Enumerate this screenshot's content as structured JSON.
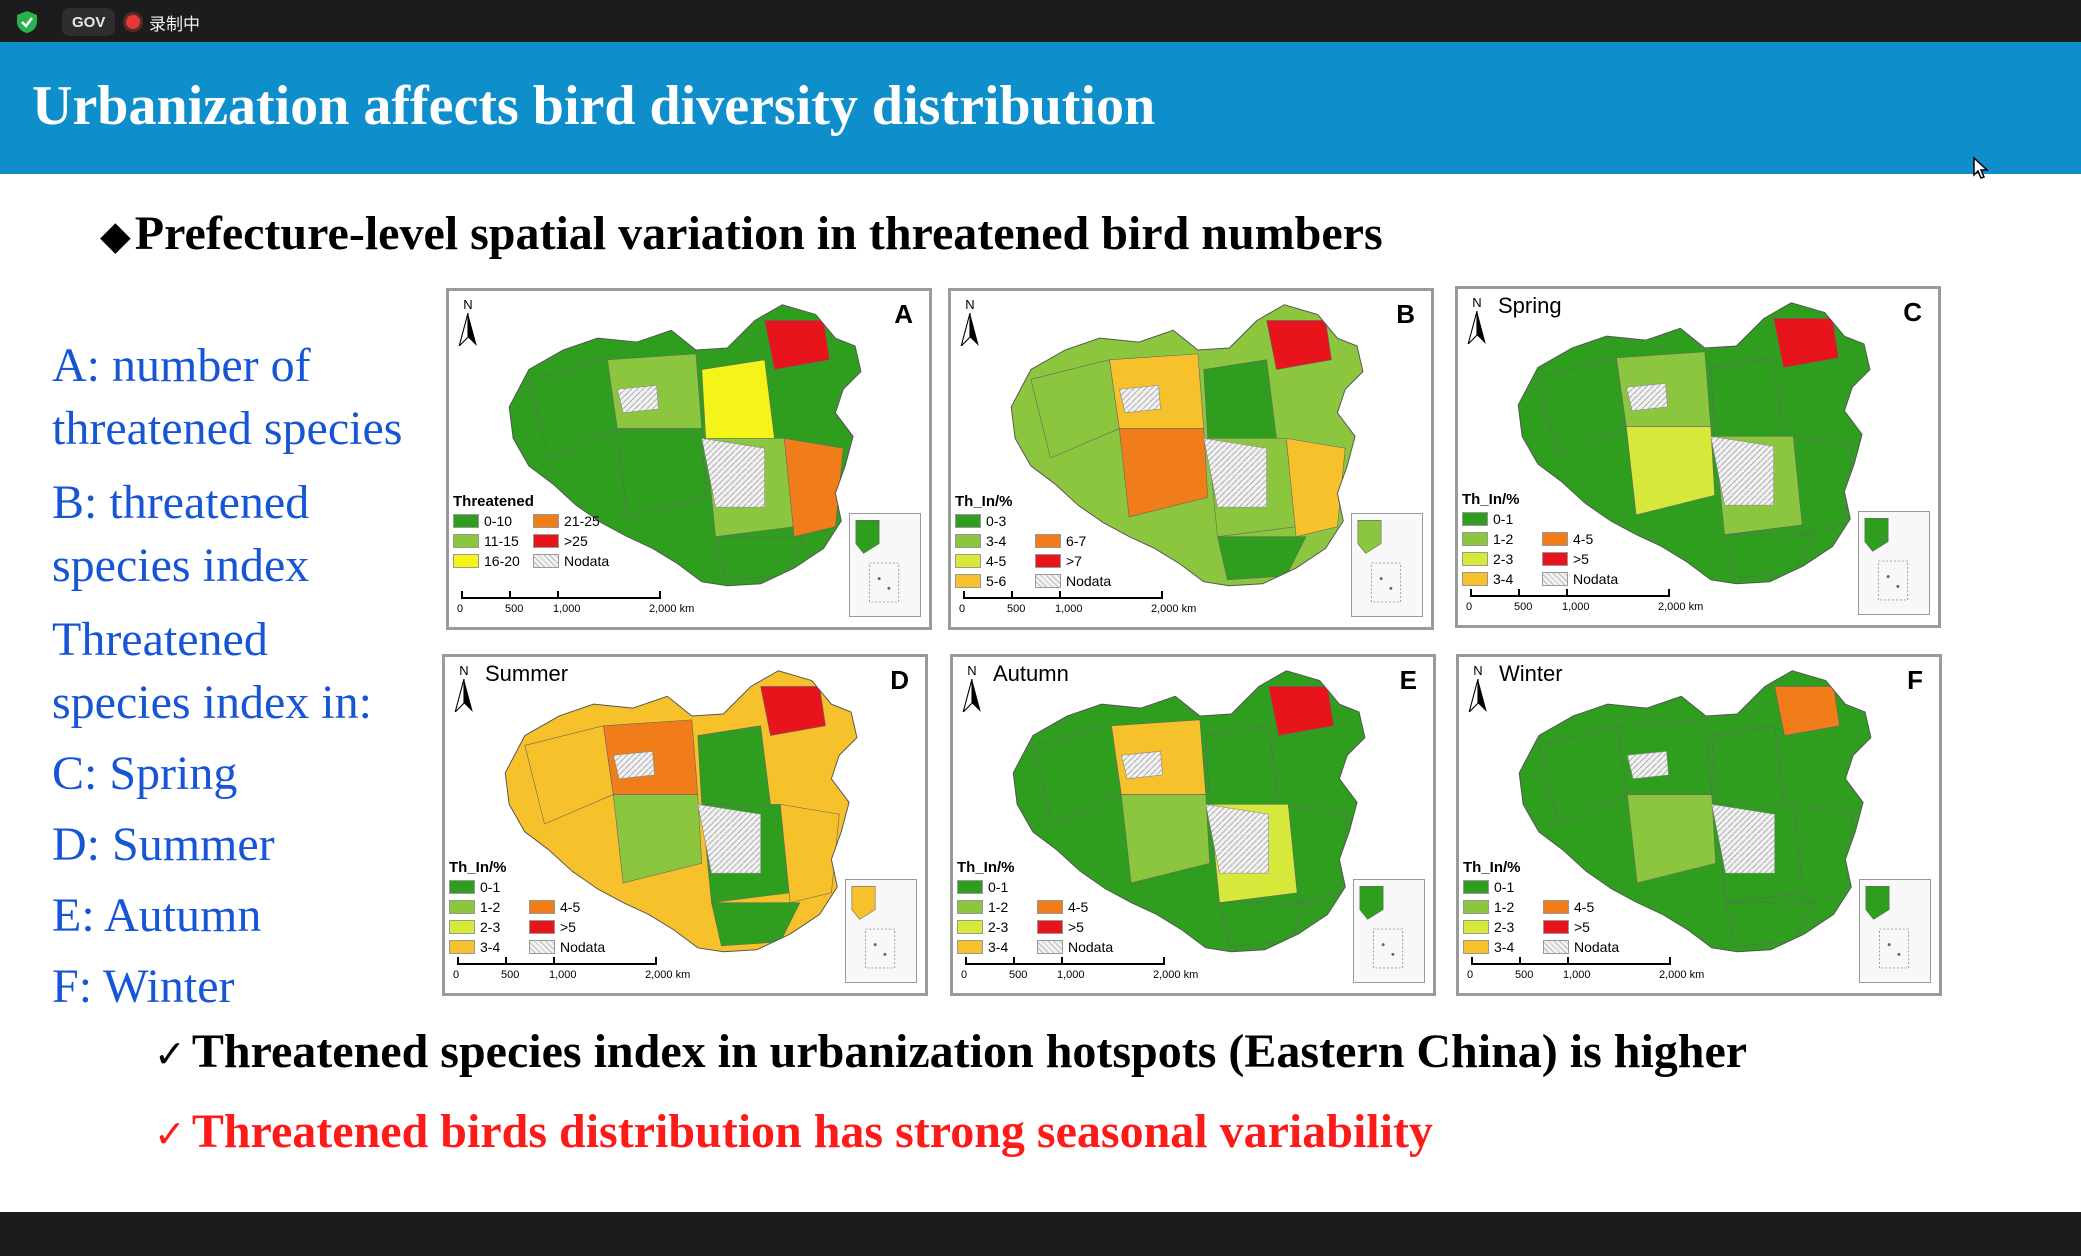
{
  "meeting_bar": {
    "gov_badge": "GOV",
    "recording_label": "录制中"
  },
  "slide": {
    "title": "Urbanization affects bird diversity distribution",
    "subtitle_marker": "◆",
    "subtitle": "Prefecture-level spatial variation in threatened bird numbers",
    "left_labels": [
      "A: number of",
      "threatened species",
      "B: threatened",
      "species index",
      "Threatened",
      "species index in:",
      "C: Spring",
      "D: Summer",
      "E: Autumn",
      "F: Winter"
    ],
    "bullets": [
      {
        "check": "✓",
        "text": "Threatened species index in urbanization hotspots (Eastern China) is higher",
        "color": "#000000"
      },
      {
        "check": "✓",
        "text": "Threatened birds distribution has strong seasonal variability",
        "color": "#ff1a1a"
      }
    ]
  },
  "maps": [
    {
      "letter": "A",
      "season": "",
      "north": "N",
      "legend_title": "Threatened",
      "legend": [
        {
          "label": "0-10",
          "color": "#2f9e1f"
        },
        {
          "label": "21-25",
          "color": "#f07c1a"
        },
        {
          "label": "11-15",
          "color": "#8cc63f"
        },
        {
          "label": ">25",
          "color": "#e8141c"
        },
        {
          "label": "16-20",
          "color": "#f4f41a"
        },
        {
          "label": "Nodata",
          "color": "#e6e6e6"
        }
      ],
      "scale": [
        "0",
        "500",
        "1,000",
        "2,000 km"
      ]
    },
    {
      "letter": "B",
      "season": "",
      "north": "N",
      "legend_title": "Th_In/%",
      "legend": [
        {
          "label": "0-3",
          "color": "#2f9e1f"
        },
        {
          "label": "",
          "color": ""
        },
        {
          "label": "3-4",
          "color": "#8cc63f"
        },
        {
          "label": "6-7",
          "color": "#f07c1a"
        },
        {
          "label": "4-5",
          "color": "#d6e83a"
        },
        {
          "label": ">7",
          "color": "#e8141c"
        },
        {
          "label": "5-6",
          "color": "#f6c12a"
        },
        {
          "label": "Nodata",
          "color": "#e6e6e6"
        }
      ],
      "scale": [
        "0",
        "500",
        "1,000",
        "2,000 km"
      ]
    },
    {
      "letter": "C",
      "season": "Spring",
      "north": "N",
      "legend_title": "Th_In/%",
      "legend": [
        {
          "label": "0-1",
          "color": "#2f9e1f"
        },
        {
          "label": "",
          "color": ""
        },
        {
          "label": "1-2",
          "color": "#8cc63f"
        },
        {
          "label": "4-5",
          "color": "#f07c1a"
        },
        {
          "label": "2-3",
          "color": "#d6e83a"
        },
        {
          "label": ">5",
          "color": "#e8141c"
        },
        {
          "label": "3-4",
          "color": "#f6c12a"
        },
        {
          "label": "Nodata",
          "color": "#e6e6e6"
        }
      ],
      "scale": [
        "0",
        "500",
        "1,000",
        "2,000 km"
      ]
    },
    {
      "letter": "D",
      "season": "Summer",
      "north": "N",
      "legend_title": "Th_In/%",
      "legend": [
        {
          "label": "0-1",
          "color": "#2f9e1f"
        },
        {
          "label": "",
          "color": ""
        },
        {
          "label": "1-2",
          "color": "#8cc63f"
        },
        {
          "label": "4-5",
          "color": "#f07c1a"
        },
        {
          "label": "2-3",
          "color": "#d6e83a"
        },
        {
          "label": ">5",
          "color": "#e8141c"
        },
        {
          "label": "3-4",
          "color": "#f6c12a"
        },
        {
          "label": "Nodata",
          "color": "#e6e6e6"
        }
      ],
      "scale": [
        "0",
        "500",
        "1,000",
        "2,000 km"
      ]
    },
    {
      "letter": "E",
      "season": "Autumn",
      "north": "N",
      "legend_title": "Th_In/%",
      "legend": [
        {
          "label": "0-1",
          "color": "#2f9e1f"
        },
        {
          "label": "",
          "color": ""
        },
        {
          "label": "1-2",
          "color": "#8cc63f"
        },
        {
          "label": "4-5",
          "color": "#f07c1a"
        },
        {
          "label": "2-3",
          "color": "#d6e83a"
        },
        {
          "label": ">5",
          "color": "#e8141c"
        },
        {
          "label": "3-4",
          "color": "#f6c12a"
        },
        {
          "label": "Nodata",
          "color": "#e6e6e6"
        }
      ],
      "scale": [
        "0",
        "500",
        "1,000",
        "2,000 km"
      ]
    },
    {
      "letter": "F",
      "season": "Winter",
      "north": "N",
      "legend_title": "Th_In/%",
      "legend": [
        {
          "label": "0-1",
          "color": "#2f9e1f"
        },
        {
          "label": "",
          "color": ""
        },
        {
          "label": "1-2",
          "color": "#8cc63f"
        },
        {
          "label": "4-5",
          "color": "#f07c1a"
        },
        {
          "label": "2-3",
          "color": "#d6e83a"
        },
        {
          "label": ">5",
          "color": "#e8141c"
        },
        {
          "label": "3-4",
          "color": "#f6c12a"
        },
        {
          "label": "Nodata",
          "color": "#e6e6e6"
        }
      ],
      "scale": [
        "0",
        "500",
        "1,000",
        "2,000 km"
      ]
    }
  ],
  "colors": {
    "title_bar": "#0e8fcc",
    "label_blue": "#1555d6",
    "accent_red": "#ff1a1a"
  }
}
